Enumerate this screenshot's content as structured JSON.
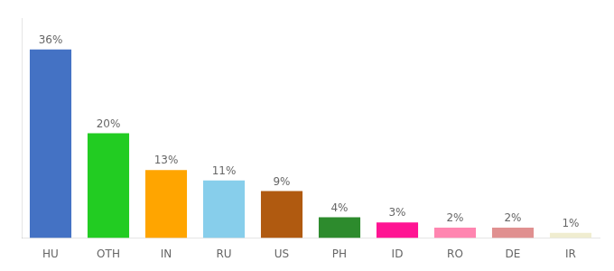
{
  "chart_data": {
    "type": "bar",
    "categories": [
      "HU",
      "OTH",
      "IN",
      "RU",
      "US",
      "PH",
      "ID",
      "RO",
      "DE",
      "IR"
    ],
    "values": [
      36,
      20,
      13,
      11,
      9,
      4,
      3,
      2,
      2,
      1
    ],
    "value_labels": [
      "36%",
      "20%",
      "13%",
      "11%",
      "9%",
      "4%",
      "3%",
      "2%",
      "2%",
      "1%"
    ],
    "colors": [
      "#4472C4",
      "#22CC22",
      "#FFA500",
      "#87CEEB",
      "#B05A10",
      "#2D8B2D",
      "#FF1493",
      "#FF85B0",
      "#E09090",
      "#F0EDD0"
    ],
    "ylim": [
      0,
      42
    ],
    "grid": false,
    "data_labels": true,
    "tick_labels": "x"
  }
}
